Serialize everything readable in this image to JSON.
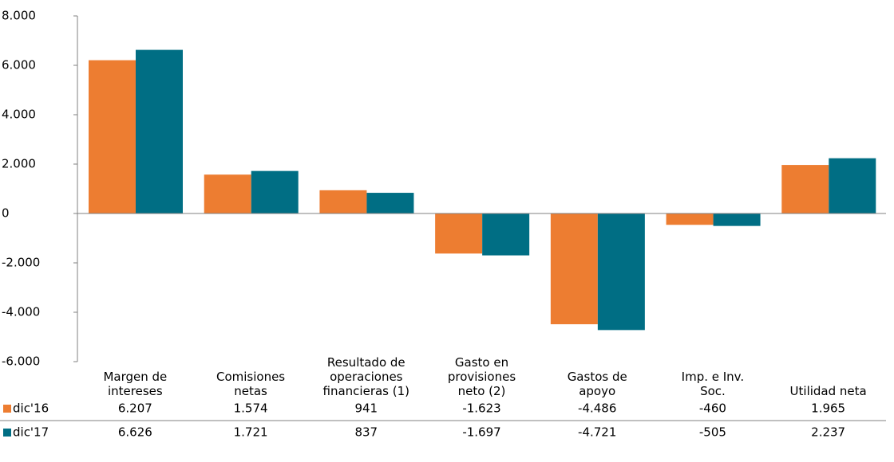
{
  "chart_data": {
    "type": "bar",
    "categories": [
      "Margen de\nintereses",
      "Comisiones\nnetas",
      "Resultado de\noperaciones\nfinancieras (1)",
      "Gasto en\nprovisiones\nneto (2)",
      "Gastos de\napoyo",
      "Imp. e Inv.\nSoc.",
      "Utilidad neta"
    ],
    "series": [
      {
        "name": "dic'16",
        "color": "#ed7d31",
        "values": [
          6207,
          1574,
          941,
          -1623,
          -4486,
          -460,
          1965
        ],
        "value_labels": [
          "6.207",
          "1.574",
          "941",
          "-1.623",
          "-4.486",
          "-460",
          "1.965"
        ]
      },
      {
        "name": "dic'17",
        "color": "#006e84",
        "values": [
          6626,
          1721,
          837,
          -1697,
          -4721,
          -505,
          2237
        ],
        "value_labels": [
          "6.626",
          "1.721",
          "837",
          "-1.697",
          "-4.721",
          "-505",
          "2.237"
        ]
      }
    ],
    "ylim": [
      -6000,
      8000
    ],
    "yticks": [
      {
        "value": -6000,
        "label": "-6.000"
      },
      {
        "value": -4000,
        "label": "-4.000"
      },
      {
        "value": -2000,
        "label": "-2.000"
      },
      0,
      {
        "value": 2000,
        "label": "2.000"
      },
      {
        "value": 4000,
        "label": "4.000"
      },
      {
        "value": 6000,
        "label": "6.000"
      },
      {
        "value": 8000,
        "label": "8.000"
      }
    ]
  }
}
